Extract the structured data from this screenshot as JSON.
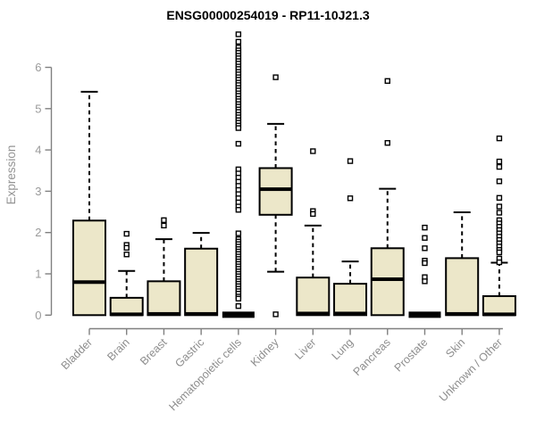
{
  "page": {
    "background": "#ffffff"
  },
  "chart_data": {
    "type": "boxplot",
    "title": "ENSG00000254019 - RP11-10J21.3",
    "xlabel": "",
    "ylabel": "Expression",
    "ylim": [
      0,
      6.9
    ],
    "yticks": [
      0,
      1,
      2,
      3,
      4,
      5,
      6
    ],
    "grid": false,
    "legend": "none",
    "categories": [
      "Bladder",
      "Brain",
      "Breast",
      "Gastric",
      "Hematopoietic cells",
      "Kidney",
      "Liver",
      "Lung",
      "Pancreas",
      "Prostate",
      "Skin",
      "Unknown / Other"
    ],
    "colors": {
      "box_fill": "#ece7c9",
      "box_border": "#000000",
      "axis": "#808080",
      "tick_label": "#9a9a9a",
      "title_color": "#000000"
    },
    "boxes": [
      {
        "category": "Bladder",
        "q1": 0,
        "median": 0.8,
        "q3": 2.29,
        "whisker_low": 0,
        "whisker_high": 5.41,
        "outliers": []
      },
      {
        "category": "Brain",
        "q1": 0,
        "median": 0.02,
        "q3": 0.42,
        "whisker_low": 0,
        "whisker_high": 1.07,
        "outliers": [
          1.97,
          1.7,
          1.63,
          1.47
        ]
      },
      {
        "category": "Breast",
        "q1": 0,
        "median": 0.03,
        "q3": 0.82,
        "whisker_low": 0,
        "whisker_high": 1.84,
        "outliers": [
          2.3,
          2.17
        ]
      },
      {
        "category": "Gastric",
        "q1": 0,
        "median": 0.03,
        "q3": 1.61,
        "whisker_low": 0,
        "whisker_high": 1.99,
        "outliers": []
      },
      {
        "category": "Hematopoietic cells",
        "q1": 0,
        "median": 0.01,
        "q3": 0.02,
        "whisker_low": 0,
        "whisker_high": 0.02,
        "outliers": [
          6.8,
          6.62,
          6.48,
          6.41,
          6.35,
          6.28,
          6.22,
          6.15,
          6.09,
          6.02,
          5.96,
          5.89,
          5.83,
          5.76,
          5.7,
          5.63,
          5.57,
          5.5,
          5.44,
          5.37,
          5.31,
          5.24,
          5.18,
          5.11,
          5.05,
          4.98,
          4.92,
          4.85,
          4.79,
          4.72,
          4.66,
          4.59,
          4.53,
          4.15,
          3.53,
          3.43,
          3.33,
          3.23,
          3.13,
          3.03,
          2.93,
          2.83,
          2.73,
          2.63,
          2.55,
          1.98,
          1.84,
          1.78,
          1.72,
          1.66,
          1.6,
          1.54,
          1.48,
          1.42,
          1.36,
          1.3,
          1.24,
          1.18,
          1.12,
          1.06,
          1.0,
          0.94,
          0.88,
          0.82,
          0.76,
          0.7,
          0.64,
          0.58,
          0.52,
          0.45,
          0.4,
          0.22
        ]
      },
      {
        "category": "Kidney",
        "q1": 2.43,
        "median": 3.05,
        "q3": 3.56,
        "whisker_low": 1.05,
        "whisker_high": 4.63,
        "outliers": [
          5.76,
          0.02
        ]
      },
      {
        "category": "Liver",
        "q1": 0,
        "median": 0.04,
        "q3": 0.91,
        "whisker_low": 0,
        "whisker_high": 2.17,
        "outliers": [
          3.97,
          2.52,
          2.45
        ]
      },
      {
        "category": "Lung",
        "q1": 0,
        "median": 0.04,
        "q3": 0.76,
        "whisker_low": 0,
        "whisker_high": 1.3,
        "outliers": [
          3.73,
          2.83
        ]
      },
      {
        "category": "Pancreas",
        "q1": 0,
        "median": 0.87,
        "q3": 1.62,
        "whisker_low": 0,
        "whisker_high": 3.06,
        "outliers": [
          5.67,
          4.17
        ]
      },
      {
        "category": "Prostate",
        "q1": 0,
        "median": 0.01,
        "q3": 0.02,
        "whisker_low": 0,
        "whisker_high": 0.02,
        "outliers": [
          2.12,
          1.87,
          1.62,
          1.32,
          1.26,
          0.92,
          0.82
        ]
      },
      {
        "category": "Skin",
        "q1": 0,
        "median": 0.03,
        "q3": 1.38,
        "whisker_low": 0,
        "whisker_high": 2.49,
        "outliers": []
      },
      {
        "category": "Unknown / Other",
        "q1": 0,
        "median": 0.02,
        "q3": 0.46,
        "whisker_low": 0,
        "whisker_high": 1.27,
        "outliers": [
          4.28,
          3.72,
          3.59,
          3.24,
          2.84,
          2.63,
          2.48,
          2.3,
          2.22,
          2.14,
          2.06,
          1.98,
          1.9,
          1.82,
          1.74,
          1.66,
          1.58,
          1.52,
          1.37,
          1.28
        ]
      }
    ]
  }
}
